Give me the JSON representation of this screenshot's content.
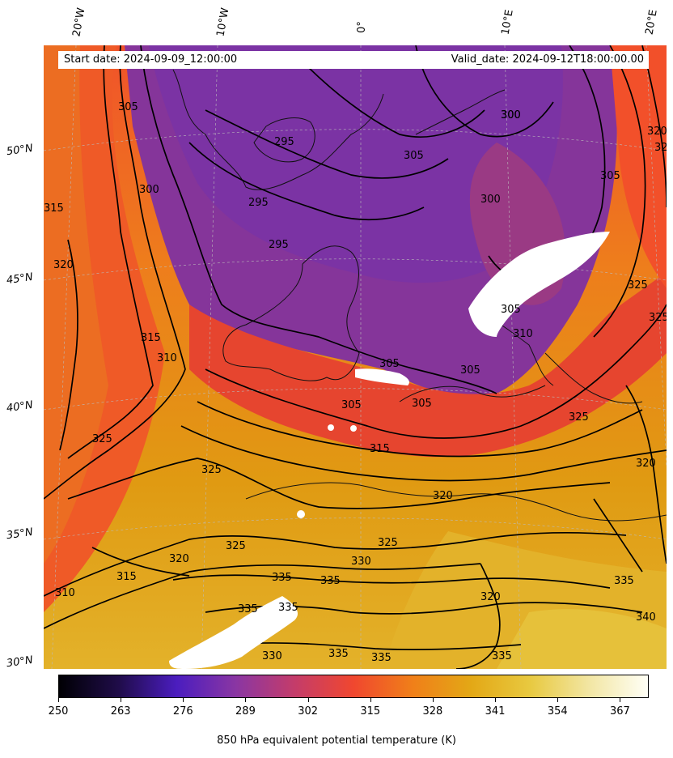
{
  "header": {
    "start_date": "Start date: 2024-09-09_12:00:00",
    "valid_date": "Valid_date: 2024-09-12T18:00:00.00"
  },
  "longitude_labels": [
    "20°W",
    "10°W",
    "0°",
    "10°E",
    "20°E"
  ],
  "latitude_labels": [
    "50°N",
    "45°N",
    "40°N",
    "35°N",
    "30°N"
  ],
  "colorbar": {
    "title": "850 hPa equivalent potential temperature (K)",
    "ticks": [
      "250",
      "263",
      "276",
      "289",
      "302",
      "315",
      "328",
      "341",
      "354",
      "367"
    ],
    "min": 250,
    "max": 373
  },
  "contour_labels": [
    "305",
    "300",
    "295",
    "295",
    "295",
    "300",
    "300",
    "305",
    "320",
    "320",
    "315",
    "320",
    "300",
    "305",
    "325",
    "310",
    "315",
    "310",
    "305",
    "305",
    "305",
    "305",
    "305",
    "315",
    "325",
    "325",
    "320",
    "320",
    "325",
    "330",
    "335",
    "335",
    "335",
    "335",
    "330",
    "335",
    "335",
    "335",
    "320",
    "325",
    "325",
    "315",
    "320",
    "335",
    "340",
    "325",
    "310"
  ]
}
